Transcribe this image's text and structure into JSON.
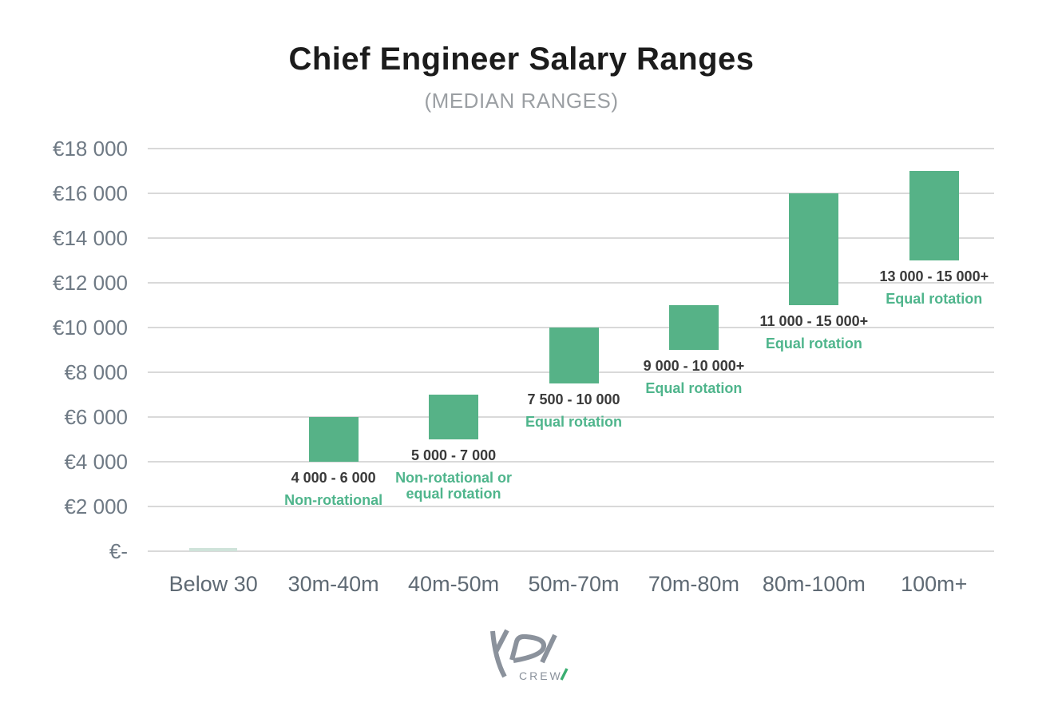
{
  "chart_data": {
    "type": "bar",
    "variant": "floating-range-column",
    "title": "Chief Engineer Salary Ranges",
    "subtitle": "(MEDIAN RANGES)",
    "currency": "EUR",
    "categories": [
      "Below 30",
      "30m-40m",
      "40m-50m",
      "50m-70m",
      "70m-80m",
      "80m-100m",
      "100m+"
    ],
    "ylim": [
      0,
      18000
    ],
    "grid": true,
    "legend": "none",
    "y_ticks": [
      {
        "value": 18000,
        "label": "€18 000"
      },
      {
        "value": 16000,
        "label": "€16 000"
      },
      {
        "value": 14000,
        "label": "€14 000"
      },
      {
        "value": 12000,
        "label": "€12 000"
      },
      {
        "value": 10000,
        "label": "€10 000"
      },
      {
        "value": 8000,
        "label": "€8 000"
      },
      {
        "value": 6000,
        "label": "€6 000"
      },
      {
        "value": 4000,
        "label": "€4 000"
      },
      {
        "value": 2000,
        "label": "€2 000"
      },
      {
        "value": 0,
        "label": "€-"
      }
    ],
    "bars": [
      {
        "category": "Below 30",
        "bar_low": 0,
        "bar_high": 0,
        "range_label": "",
        "rotation_label": ""
      },
      {
        "category": "30m-40m",
        "bar_low": 4000,
        "bar_high": 6000,
        "range_label": "4 000 - 6 000",
        "rotation_label": "Non-rotational"
      },
      {
        "category": "40m-50m",
        "bar_low": 5000,
        "bar_high": 7000,
        "range_label": "5 000 - 7 000",
        "rotation_label": "Non-rotational or equal rotation"
      },
      {
        "category": "50m-70m",
        "bar_low": 7500,
        "bar_high": 10000,
        "range_label": "7 500 - 10 000",
        "rotation_label": "Equal rotation"
      },
      {
        "category": "70m-80m",
        "bar_low": 9000,
        "bar_high": 11000,
        "range_label": "9 000 - 10 000+",
        "rotation_label": "Equal rotation"
      },
      {
        "category": "80m-100m",
        "bar_low": 11000,
        "bar_high": 16000,
        "range_label": "11 000 - 15 000+",
        "rotation_label": "Equal rotation"
      },
      {
        "category": "100m+",
        "bar_low": 13000,
        "bar_high": 17000,
        "range_label": "13 000 - 15 000+",
        "rotation_label": "Equal rotation"
      }
    ],
    "colors": {
      "bar": "#56b287",
      "zero_bar": "#cfe3da",
      "grid": "#d9d9d9",
      "value_label": "#3a3a3a",
      "rotation_label": "#4fb58c",
      "axis_text": "#6f7a85",
      "title": "#1c1c1c",
      "subtitle": "#9b9fa3"
    }
  },
  "logo": {
    "brand": "YPI",
    "sub": "CREW",
    "accent_slash": "/",
    "color": "#8b929c",
    "accent_color": "#3bae72"
  }
}
